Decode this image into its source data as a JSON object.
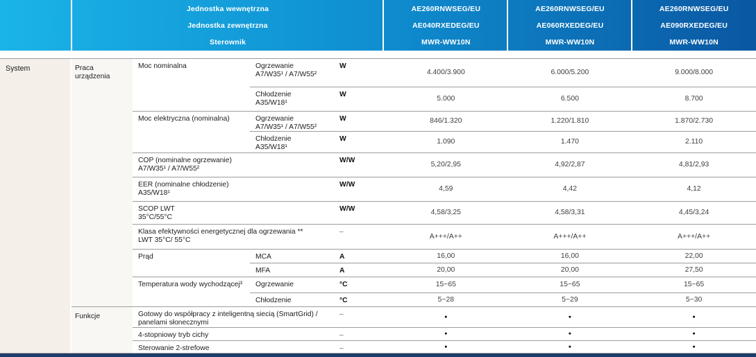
{
  "header": {
    "unit_labels": [
      "Jednostka wewnętrzna",
      "Jednostka zewnętrzna",
      "Sterownik"
    ],
    "products": [
      [
        "AE260RNWSEG/EU",
        "AE040RXEDEG/EU",
        "MWR-WW10N"
      ],
      [
        "AE260RNWSEG/EU",
        "AE060RXEDEG/EU",
        "MWR-WW10N"
      ],
      [
        "AE260RNWSEG/EU",
        "AE090RXEDEG/EU",
        "MWR-WW10N"
      ]
    ],
    "gradient_start": "#1ab4e8",
    "gradient_end": "#0a57a2"
  },
  "table": {
    "section": "System",
    "rows": [
      {
        "group": "Praca urządzenia",
        "gspan": 12,
        "param": "Moc nominalna",
        "pspan": 2,
        "pcols": 1,
        "sub": "Ogrzewanie\nA7/W35¹ / A7/W55²",
        "unit": "W",
        "values": [
          "4.400/3.900",
          "6.000/5.200",
          "9.000/8.000"
        ],
        "border": "none"
      },
      {
        "sub": "Chłodzenie\nA35/W18¹",
        "unit": "W",
        "values": [
          "5.000",
          "6.500",
          "8.700"
        ],
        "border": "sub"
      },
      {
        "param": "Moc elektryczna (nominalna)",
        "pspan": 2,
        "pcols": 1,
        "sub": "Ogrzewanie\nA7/W35¹ / A7/W55²",
        "unit": "W",
        "values": [
          "846/1.320",
          "1.220/1.810",
          "1.870/2.730"
        ],
        "border": "param"
      },
      {
        "sub": "Chłodzenie\nA35/W18¹",
        "unit": "W",
        "values": [
          "1.090",
          "1.470",
          "2.110"
        ],
        "border": "sub"
      },
      {
        "param": "COP (nominalne ogrzewanie)\nA7/W35¹ / A7/W55²",
        "pspan": 1,
        "pcols": 2,
        "unit": "W/W",
        "values": [
          "5,20/2,95",
          "4,92/2,87",
          "4,81/2,93"
        ],
        "border": "param"
      },
      {
        "param": "EER (nominalne chłodzenie)\nA35/W18¹",
        "pspan": 1,
        "pcols": 2,
        "unit": "W/W",
        "values": [
          "4,59",
          "4,42",
          "4,12"
        ],
        "border": "param"
      },
      {
        "param": "SCOP LWT\n35°C/55°C",
        "pspan": 1,
        "pcols": 2,
        "unit": "W/W",
        "values": [
          "4,58/3,25",
          "4,58/3,31",
          "4,45/3,24"
        ],
        "border": "param"
      },
      {
        "param": "Klasa efektywności energetycznej dla ogrzewania **\nLWT 35°C/ 55°C",
        "pspan": 1,
        "pcols": 2,
        "unit": "–",
        "values": [
          "A+++/A++",
          "A+++/A++",
          "A+++/A++"
        ],
        "border": "param"
      },
      {
        "param": "Prąd",
        "pspan": 2,
        "pcols": 1,
        "sub": "MCA",
        "unit": "A",
        "values": [
          "16,00",
          "16,00",
          "22,00"
        ],
        "border": "param"
      },
      {
        "sub": "MFA",
        "unit": "A",
        "values": [
          "20,00",
          "20,00",
          "27,50"
        ],
        "border": "sub"
      },
      {
        "param": "Temperatura wody wychodzącej³",
        "pspan": 2,
        "pcols": 1,
        "sub": "Ogrzewanie",
        "unit": "°C",
        "values": [
          "15~65",
          "15~65",
          "15~65"
        ],
        "border": "param"
      },
      {
        "sub": "Chłodzenie",
        "unit": "°C",
        "values": [
          "5~28",
          "5~29",
          "5~30"
        ],
        "border": "sub"
      },
      {
        "group": "Funkcje",
        "gspan": 3,
        "param": "Gotowy do współpracy z inteligentną siecią (SmartGrid) /\npanelami słonecznymi",
        "pspan": 1,
        "pcols": 2,
        "unit": "–",
        "values": [
          "●",
          "●",
          "●"
        ],
        "border": "group"
      },
      {
        "param": "4-stopniowy tryb cichy",
        "pspan": 1,
        "pcols": 2,
        "unit": "–",
        "values": [
          "●",
          "●",
          "●"
        ],
        "border": "param"
      },
      {
        "param": "Sterowanie 2-strefowe",
        "pspan": 1,
        "pcols": 2,
        "unit": "–",
        "values": [
          "●",
          "●",
          "●"
        ],
        "border": "param"
      }
    ]
  }
}
